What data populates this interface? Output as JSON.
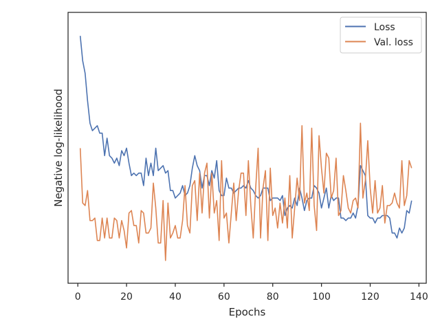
{
  "chart_data": {
    "type": "line",
    "title": "",
    "xlabel": "Epochs",
    "ylabel": "Negative log-likelihood",
    "xlim": [
      -4,
      143
    ],
    "x_ticks": [
      0,
      20,
      40,
      60,
      80,
      100,
      120,
      140
    ],
    "y_ticks_shown": false,
    "ylim": [
      0,
      100
    ],
    "grid": false,
    "legend": "top-right",
    "x": [
      1,
      2,
      3,
      4,
      5,
      6,
      7,
      8,
      9,
      10,
      11,
      12,
      13,
      14,
      15,
      16,
      17,
      18,
      19,
      20,
      21,
      22,
      23,
      24,
      25,
      26,
      27,
      28,
      29,
      30,
      31,
      32,
      33,
      34,
      35,
      36,
      37,
      38,
      39,
      40,
      41,
      42,
      43,
      44,
      45,
      46,
      47,
      48,
      49,
      50,
      51,
      52,
      53,
      54,
      55,
      56,
      57,
      58,
      59,
      60,
      61,
      62,
      63,
      64,
      65,
      66,
      67,
      68,
      69,
      70,
      71,
      72,
      73,
      74,
      75,
      76,
      77,
      78,
      79,
      80,
      81,
      82,
      83,
      84,
      85,
      86,
      87,
      88,
      89,
      90,
      91,
      92,
      93,
      94,
      95,
      96,
      97,
      98,
      99,
      100,
      101,
      102,
      103,
      104,
      105,
      106,
      107,
      108,
      109,
      110,
      111,
      112,
      113,
      114,
      115,
      116,
      117,
      118,
      119,
      120,
      121,
      122,
      123,
      124,
      125,
      126,
      127,
      128,
      129,
      130,
      131,
      132,
      133,
      134,
      135,
      136,
      137
    ],
    "series": [
      {
        "name": "Loss",
        "color": "#4c72b0",
        "values": [
          95,
          85,
          80,
          69,
          60,
          57,
          58,
          59,
          56,
          56,
          47,
          54,
          47,
          46,
          44,
          46,
          43,
          49,
          47,
          50,
          44,
          39,
          40,
          39,
          40,
          40,
          35,
          46,
          39,
          44,
          39,
          50,
          41,
          42,
          43,
          40,
          41,
          33,
          33,
          30,
          31,
          32,
          35,
          31,
          32,
          35,
          42,
          47,
          43,
          41,
          34,
          39,
          39,
          35,
          41,
          38,
          45,
          33,
          31,
          31,
          38,
          34,
          34,
          32,
          33,
          34,
          34,
          35,
          34,
          37,
          34,
          33,
          31,
          30,
          31,
          34,
          34,
          34,
          29,
          30,
          30,
          30,
          29,
          31,
          23,
          26,
          27,
          26,
          30,
          27,
          34,
          30,
          25,
          29,
          30,
          30,
          35,
          34,
          32,
          26,
          30,
          34,
          26,
          31,
          29,
          30,
          30,
          22,
          22,
          21,
          22,
          22,
          24,
          22,
          27,
          43,
          41,
          39,
          23,
          22,
          22,
          20,
          22,
          22,
          23,
          23,
          23,
          22,
          16,
          16,
          14,
          18,
          16,
          18,
          25,
          24,
          29
        ]
      },
      {
        "name": "Val. loss",
        "color": "#dd8452",
        "values": [
          50,
          28,
          27,
          33,
          21,
          21,
          22,
          13,
          13,
          22,
          14,
          22,
          14,
          14,
          22,
          21,
          14,
          21,
          17,
          10,
          24,
          25,
          19,
          19,
          12,
          25,
          24,
          16,
          16,
          18,
          36,
          26,
          12,
          12,
          29,
          5,
          28,
          14,
          16,
          19,
          14,
          14,
          21,
          35,
          19,
          16,
          35,
          37,
          21,
          40,
          24,
          40,
          44,
          22,
          40,
          24,
          29,
          13,
          45,
          22,
          24,
          12,
          24,
          36,
          21,
          33,
          40,
          40,
          23,
          45,
          27,
          14,
          34,
          50,
          14,
          34,
          41,
          13,
          42,
          23,
          26,
          18,
          28,
          20,
          30,
          18,
          39,
          14,
          26,
          38,
          29,
          59,
          28,
          32,
          25,
          58,
          27,
          17,
          55,
          42,
          32,
          48,
          46,
          30,
          33,
          46,
          23,
          25,
          39,
          33,
          26,
          24,
          29,
          30,
          26,
          60,
          30,
          37,
          53,
          34,
          24,
          37,
          24,
          26,
          35,
          20,
          27,
          27,
          28,
          32,
          28,
          26,
          45,
          27,
          31,
          45,
          42
        ]
      }
    ]
  }
}
